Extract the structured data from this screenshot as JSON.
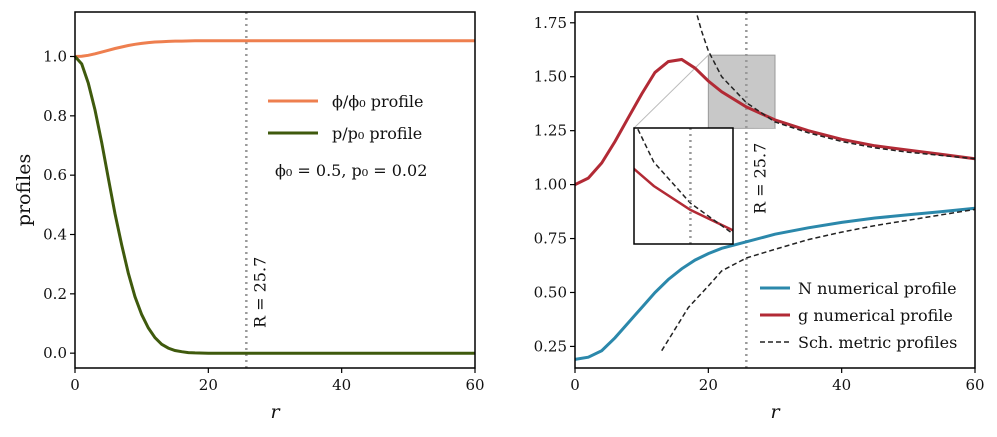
{
  "chart_data": [
    {
      "type": "line",
      "xlabel": "r",
      "ylabel": "profiles",
      "xlim": [
        0,
        60
      ],
      "ylim": [
        -0.05,
        1.15
      ],
      "x_ticks": [
        "0",
        "20",
        "40",
        "60"
      ],
      "y_ticks": [
        "0.0",
        "0.2",
        "0.4",
        "0.6",
        "0.8",
        "1.0"
      ],
      "grid": false,
      "legend_position": "center-right",
      "series": [
        {
          "name": "ϕ/ϕ₀ profile",
          "color": "#ee7f4f",
          "points": [
            [
              0,
              1.0
            ],
            [
              1,
              1.001
            ],
            [
              2,
              1.004
            ],
            [
              3,
              1.009
            ],
            [
              4,
              1.015
            ],
            [
              5,
              1.021
            ],
            [
              6,
              1.027
            ],
            [
              7,
              1.032
            ],
            [
              8,
              1.037
            ],
            [
              9,
              1.041
            ],
            [
              10,
              1.044
            ],
            [
              11,
              1.047
            ],
            [
              12,
              1.049
            ],
            [
              13,
              1.05
            ],
            [
              14,
              1.051
            ],
            [
              15,
              1.052
            ],
            [
              16,
              1.052
            ],
            [
              18,
              1.053
            ],
            [
              20,
              1.053
            ],
            [
              25,
              1.053
            ],
            [
              30,
              1.053
            ],
            [
              40,
              1.053
            ],
            [
              50,
              1.053
            ],
            [
              60,
              1.053
            ]
          ]
        },
        {
          "name": "p/p₀ profile",
          "color": "#3f5a0d",
          "points": [
            [
              0,
              1.0
            ],
            [
              1,
              0.975
            ],
            [
              2,
              0.91
            ],
            [
              3,
              0.82
            ],
            [
              4,
              0.71
            ],
            [
              5,
              0.59
            ],
            [
              6,
              0.47
            ],
            [
              7,
              0.365
            ],
            [
              8,
              0.27
            ],
            [
              9,
              0.19
            ],
            [
              10,
              0.13
            ],
            [
              11,
              0.085
            ],
            [
              12,
              0.052
            ],
            [
              13,
              0.03
            ],
            [
              14,
              0.017
            ],
            [
              15,
              0.009
            ],
            [
              16,
              0.005
            ],
            [
              17,
              0.002
            ],
            [
              18,
              0.001
            ],
            [
              20,
              0.0
            ],
            [
              30,
              0.0
            ],
            [
              40,
              0.0
            ],
            [
              50,
              0.0
            ],
            [
              60,
              0.0
            ]
          ]
        }
      ],
      "annotations": {
        "params": "ϕ₀ = 0.5,    p₀ = 0.02",
        "radius_label": "R = 25.7",
        "radius_value": 25.7
      }
    },
    {
      "type": "line",
      "xlabel": "r",
      "ylabel": "",
      "xlim": [
        0,
        60
      ],
      "ylim": [
        0.15,
        1.8
      ],
      "x_ticks": [
        "0",
        "20",
        "40",
        "60"
      ],
      "y_ticks": [
        "0.25",
        "0.50",
        "0.75",
        "1.00",
        "1.25",
        "1.50",
        "1.75"
      ],
      "grid": false,
      "legend_position": "lower-right",
      "series": [
        {
          "name": "N numerical profile",
          "color": "#2b88ab",
          "points": [
            [
              0,
              0.19
            ],
            [
              2,
              0.2
            ],
            [
              4,
              0.23
            ],
            [
              6,
              0.29
            ],
            [
              8,
              0.36
            ],
            [
              10,
              0.43
            ],
            [
              12,
              0.5
            ],
            [
              14,
              0.56
            ],
            [
              16,
              0.61
            ],
            [
              18,
              0.65
            ],
            [
              20,
              0.68
            ],
            [
              22,
              0.705
            ],
            [
              25.7,
              0.735
            ],
            [
              30,
              0.77
            ],
            [
              35,
              0.8
            ],
            [
              40,
              0.825
            ],
            [
              45,
              0.845
            ],
            [
              50,
              0.86
            ],
            [
              55,
              0.875
            ],
            [
              60,
              0.89
            ]
          ]
        },
        {
          "name": "g numerical profile",
          "color": "#b22a35",
          "points": [
            [
              0,
              1.0
            ],
            [
              2,
              1.03
            ],
            [
              4,
              1.1
            ],
            [
              6,
              1.2
            ],
            [
              8,
              1.31
            ],
            [
              10,
              1.42
            ],
            [
              12,
              1.52
            ],
            [
              14,
              1.57
            ],
            [
              16,
              1.58
            ],
            [
              18,
              1.54
            ],
            [
              20,
              1.48
            ],
            [
              22,
              1.43
            ],
            [
              25.7,
              1.36
            ],
            [
              30,
              1.3
            ],
            [
              35,
              1.25
            ],
            [
              40,
              1.21
            ],
            [
              45,
              1.18
            ],
            [
              50,
              1.16
            ],
            [
              55,
              1.14
            ],
            [
              60,
              1.12
            ]
          ]
        },
        {
          "name": "Sch. metric profiles",
          "color": "#222222",
          "dashed": true,
          "points_N": [
            [
              13,
              0.23
            ],
            [
              15,
              0.33
            ],
            [
              17,
              0.43
            ],
            [
              20,
              0.53
            ],
            [
              22,
              0.6
            ],
            [
              25.7,
              0.66
            ],
            [
              30,
              0.7
            ],
            [
              35,
              0.745
            ],
            [
              40,
              0.78
            ],
            [
              45,
              0.81
            ],
            [
              50,
              0.835
            ],
            [
              55,
              0.86
            ],
            [
              60,
              0.885
            ]
          ],
          "points_g": [
            [
              18,
              1.82
            ],
            [
              19,
              1.71
            ],
            [
              20,
              1.62
            ],
            [
              22,
              1.5
            ],
            [
              25.7,
              1.38
            ],
            [
              30,
              1.29
            ],
            [
              35,
              1.24
            ],
            [
              40,
              1.2
            ],
            [
              45,
              1.17
            ],
            [
              50,
              1.15
            ],
            [
              55,
              1.135
            ],
            [
              60,
              1.12
            ]
          ]
        }
      ],
      "annotations": {
        "radius_label": "R = 25.7",
        "radius_value": 25.7,
        "zoom_box_x": [
          20,
          30
        ],
        "zoom_box_y": [
          1.26,
          1.6
        ]
      }
    }
  ]
}
